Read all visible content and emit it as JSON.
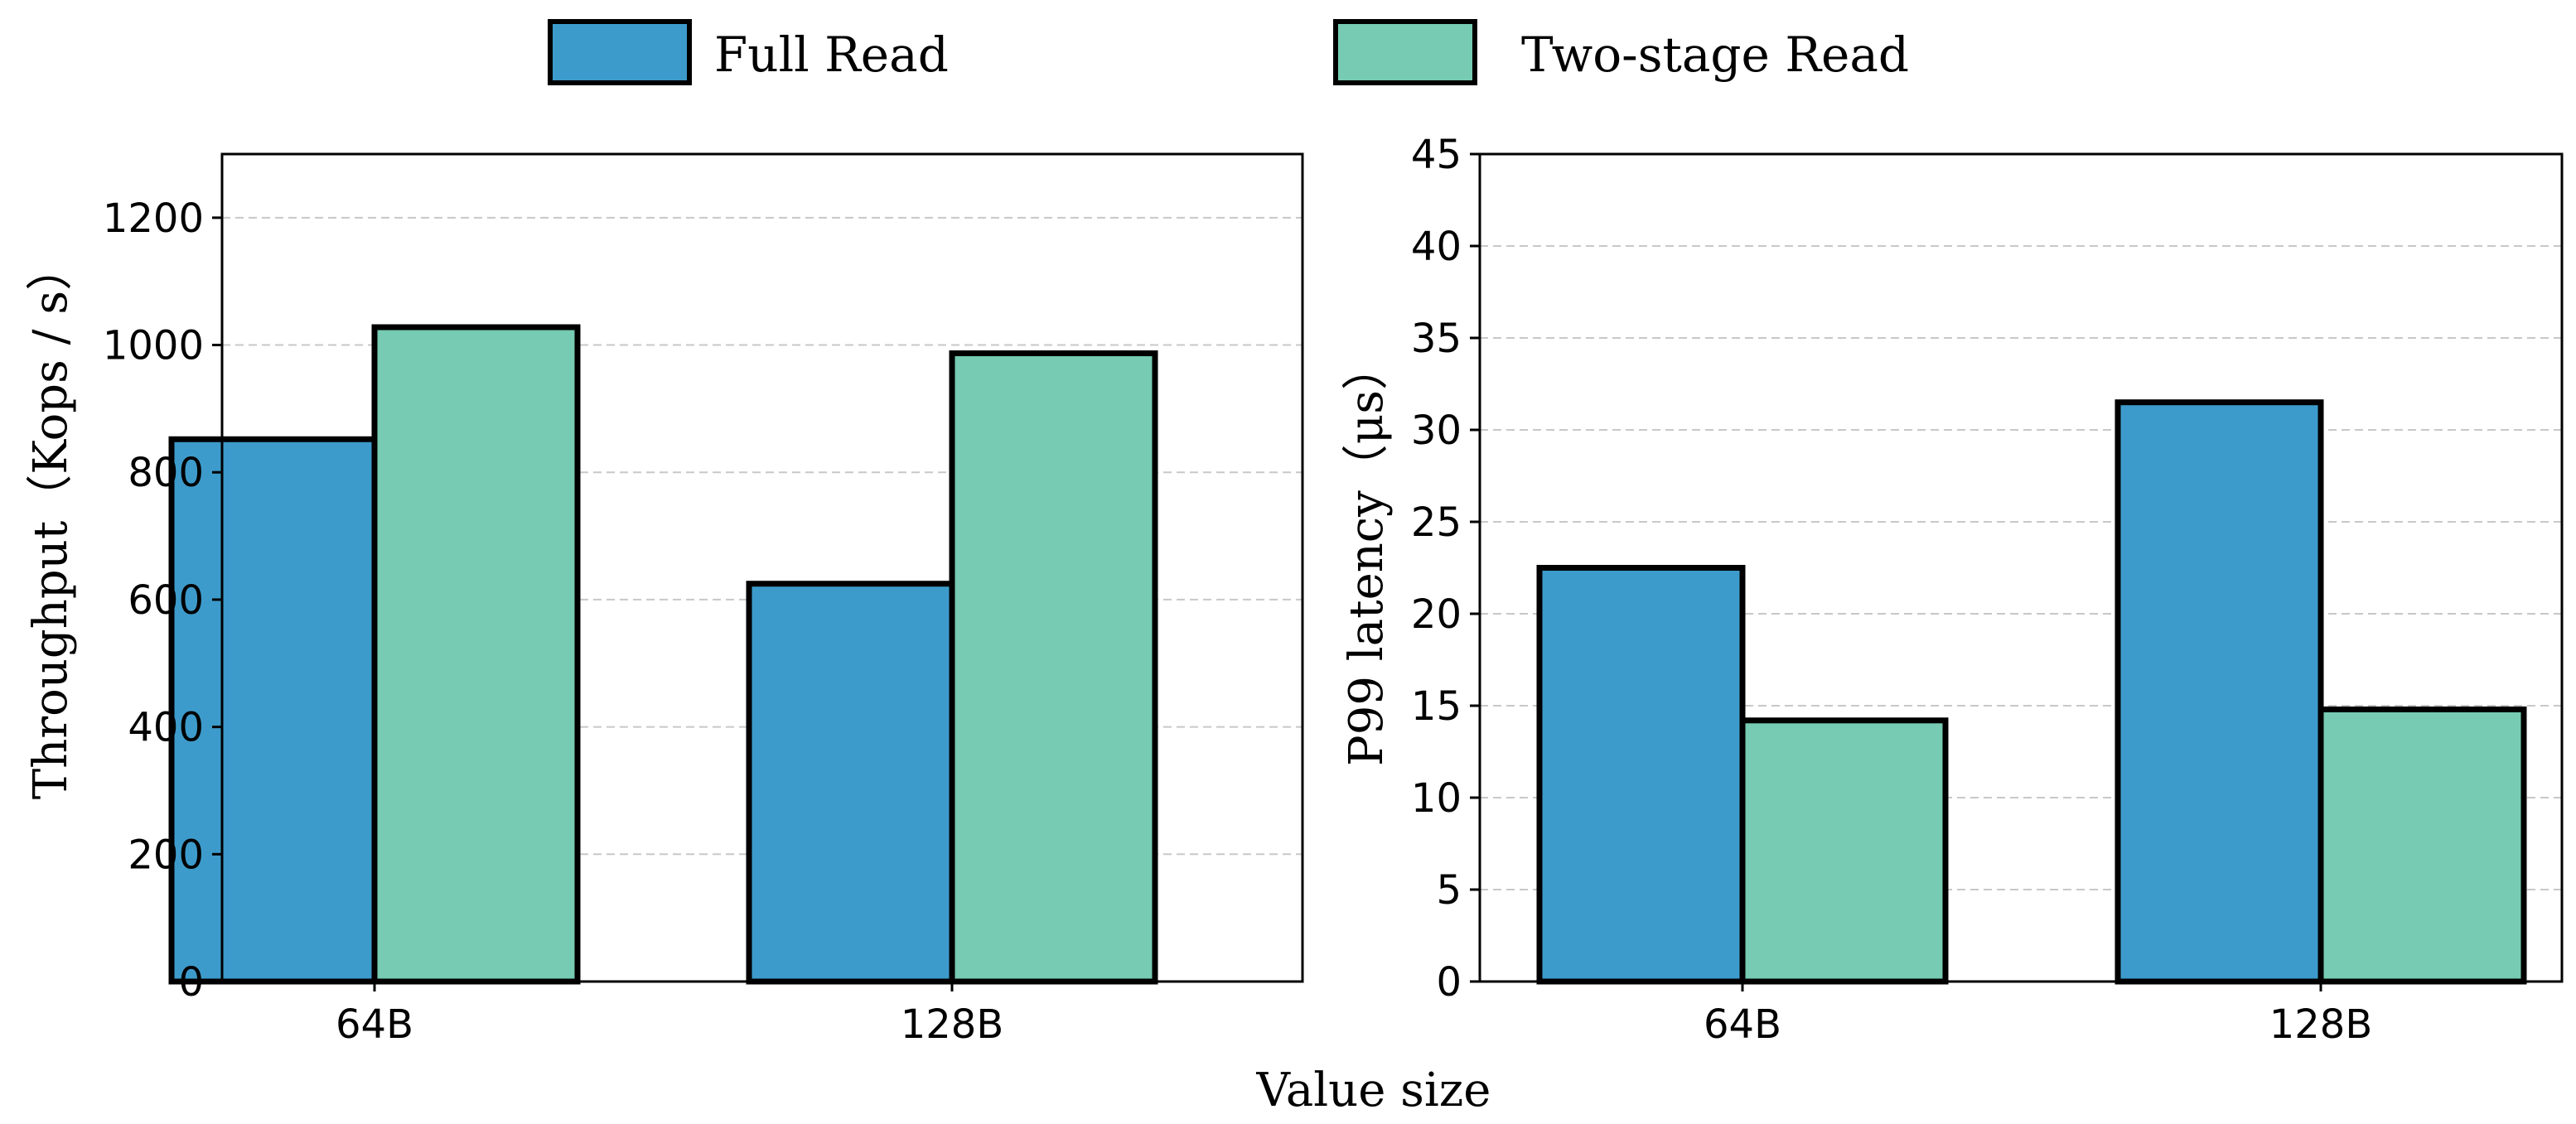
{
  "legend": {
    "entries": [
      {
        "label": "Full Read",
        "color": "#3d9bcb"
      },
      {
        "label": "Two-stage Read",
        "color": "#76cbb2"
      }
    ]
  },
  "shared_xlabel": "Value size",
  "chart_data": [
    {
      "type": "bar",
      "categories": [
        "64B",
        "128B"
      ],
      "series": [
        {
          "name": "Full Read",
          "values": [
            852,
            625
          ],
          "color": "#3d9bcb"
        },
        {
          "name": "Two-stage Read",
          "values": [
            1028,
            987
          ],
          "color": "#76cbb2"
        }
      ],
      "ylabel": "Throughput（Kops / s）",
      "ylim": [
        0,
        1300
      ],
      "yticks": [
        0,
        200,
        400,
        600,
        800,
        1000,
        1200
      ],
      "grid": true
    },
    {
      "type": "bar",
      "categories": [
        "64B",
        "128B"
      ],
      "series": [
        {
          "name": "Full Read",
          "values": [
            22.5,
            31.5
          ],
          "color": "#3d9bcb"
        },
        {
          "name": "Two-stage Read",
          "values": [
            14.2,
            14.8
          ],
          "color": "#76cbb2"
        }
      ],
      "ylabel": "P99 latency（μs）",
      "ylim": [
        0,
        45
      ],
      "yticks": [
        0,
        5,
        10,
        15,
        20,
        25,
        30,
        35,
        40,
        45
      ],
      "grid": true
    }
  ]
}
